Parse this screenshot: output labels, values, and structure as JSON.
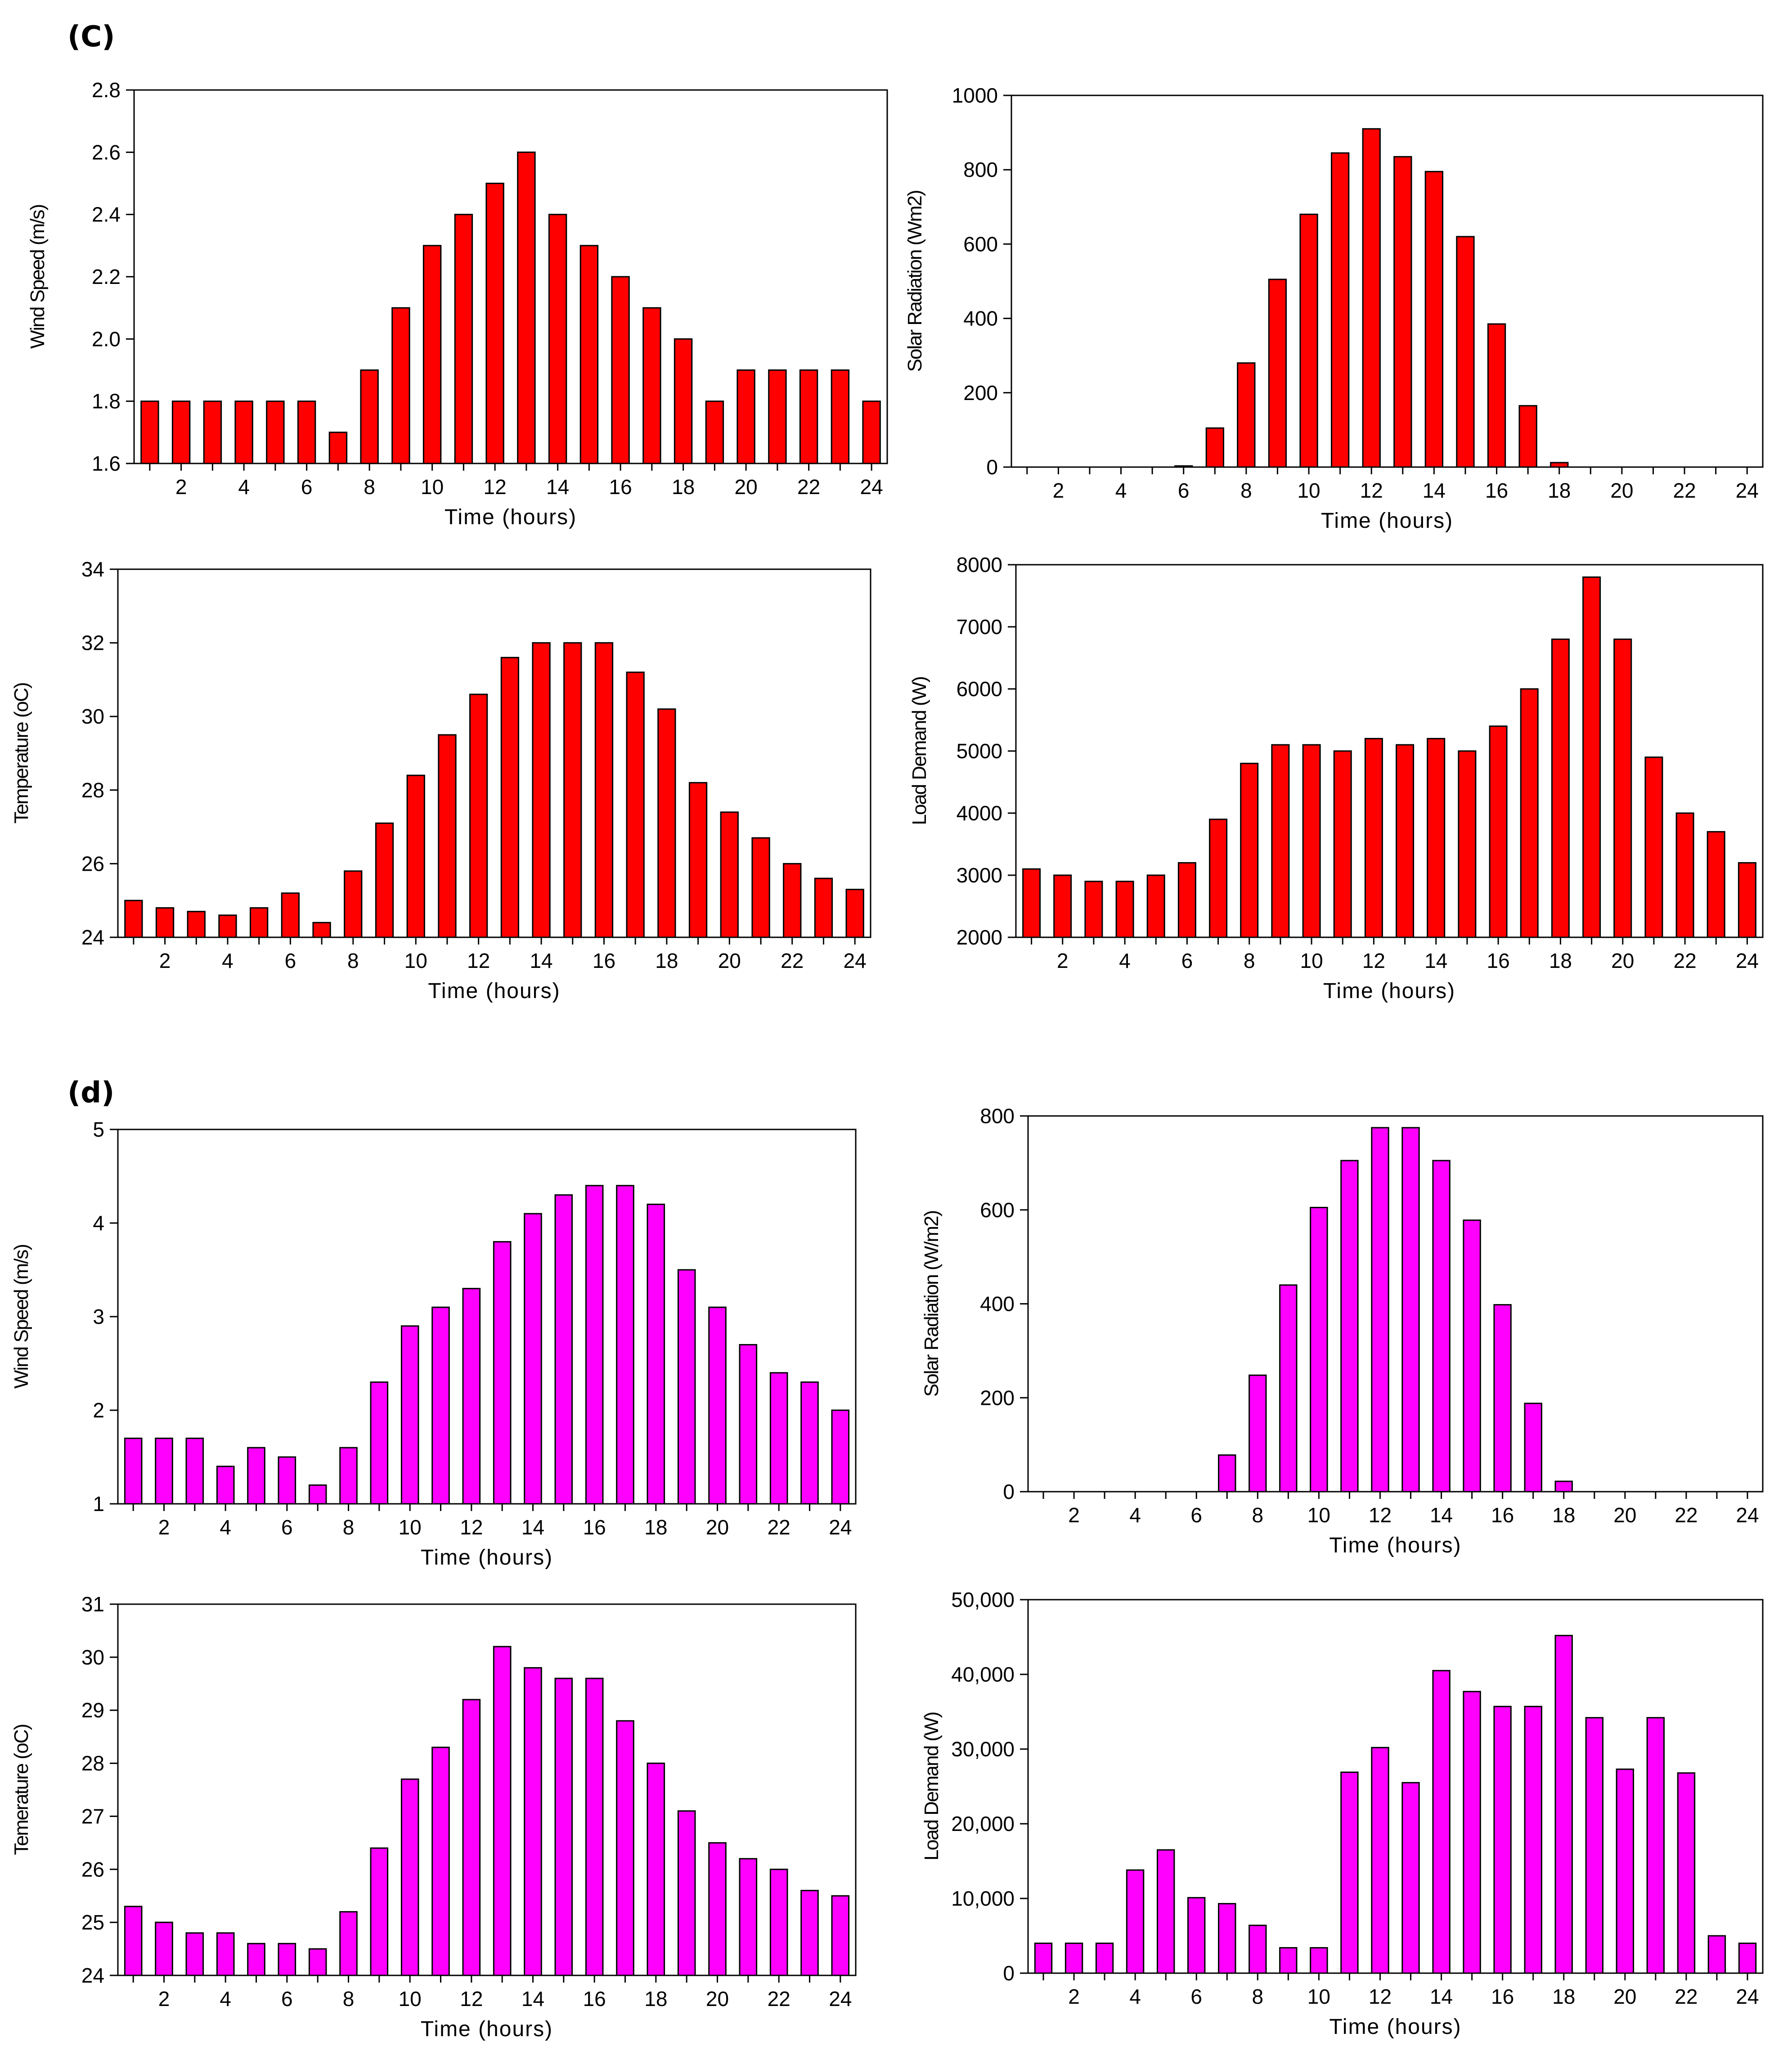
{
  "panels": [
    {
      "label": "(C)",
      "charts": [
        0,
        1,
        2,
        3
      ]
    },
    {
      "label": "(d)",
      "charts": [
        4,
        5,
        6,
        7
      ]
    }
  ],
  "colors": {
    "c_bar": "#ff0000",
    "d_bar": "#ff00ff",
    "axis": "#000000"
  },
  "chart_data": [
    {
      "type": "bar",
      "title": "",
      "xlabel": "Time (hours)",
      "ylabel": "Wind Speed (m/s)",
      "ylim": [
        1.6,
        2.8
      ],
      "yticks": [
        "1.6",
        "1.8",
        "2.0",
        "2.2",
        "2.4",
        "2.6",
        "2.8"
      ],
      "ytick_values": [
        1.6,
        1.8,
        2.0,
        2.2,
        2.4,
        2.6,
        2.8
      ],
      "xticks": [
        "2",
        "4",
        "6",
        "8",
        "10",
        "12",
        "14",
        "16",
        "18",
        "20",
        "22",
        "24"
      ],
      "x": [
        1,
        2,
        3,
        4,
        5,
        6,
        7,
        8,
        9,
        10,
        11,
        12,
        13,
        14,
        15,
        16,
        17,
        18,
        19,
        20,
        21,
        22,
        23,
        24
      ],
      "values": [
        1.8,
        1.8,
        1.8,
        1.8,
        1.8,
        1.8,
        1.7,
        1.9,
        2.1,
        2.3,
        2.4,
        2.5,
        2.6,
        2.4,
        2.3,
        2.2,
        2.1,
        2.0,
        1.8,
        1.9,
        1.9,
        1.9,
        1.9,
        1.8
      ]
    },
    {
      "type": "bar",
      "title": "",
      "xlabel": "Time (hours)",
      "ylabel": "Solar Radiation (Wm2)",
      "ylim": [
        0,
        1000
      ],
      "yticks": [
        "0",
        "200",
        "400",
        "600",
        "800",
        "1000"
      ],
      "ytick_values": [
        0,
        200,
        400,
        600,
        800,
        1000
      ],
      "xticks": [
        "2",
        "4",
        "6",
        "8",
        "10",
        "12",
        "14",
        "16",
        "18",
        "20",
        "22",
        "24"
      ],
      "x": [
        1,
        2,
        3,
        4,
        5,
        6,
        7,
        8,
        9,
        10,
        11,
        12,
        13,
        14,
        15,
        16,
        17,
        18,
        19,
        20,
        21,
        22,
        23,
        24
      ],
      "values": [
        0,
        0,
        0,
        0,
        0,
        3,
        105,
        280,
        505,
        680,
        845,
        910,
        835,
        795,
        620,
        385,
        165,
        12,
        0,
        0,
        0,
        0,
        0,
        0
      ]
    },
    {
      "type": "bar",
      "title": "",
      "xlabel": "Time (hours)",
      "ylabel": "Temperature (oC)",
      "ylim": [
        24,
        34
      ],
      "yticks": [
        "24",
        "26",
        "28",
        "30",
        "32",
        "34"
      ],
      "ytick_values": [
        24,
        26,
        28,
        30,
        32,
        34
      ],
      "xticks": [
        "2",
        "4",
        "6",
        "8",
        "10",
        "12",
        "14",
        "16",
        "18",
        "20",
        "22",
        "24"
      ],
      "x": [
        1,
        2,
        3,
        4,
        5,
        6,
        7,
        8,
        9,
        10,
        11,
        12,
        13,
        14,
        15,
        16,
        17,
        18,
        19,
        20,
        21,
        22,
        23,
        24
      ],
      "values": [
        25.0,
        24.8,
        24.7,
        24.6,
        24.8,
        25.2,
        24.4,
        25.8,
        27.1,
        28.4,
        29.5,
        30.6,
        31.6,
        32.0,
        32.0,
        32.0,
        31.2,
        30.2,
        28.2,
        27.4,
        26.7,
        26.0,
        25.6,
        25.3
      ]
    },
    {
      "type": "bar",
      "title": "",
      "xlabel": "Time (hours)",
      "ylabel": "Load Demand (W)",
      "ylim": [
        2000,
        8000
      ],
      "yticks": [
        "2000",
        "3000",
        "4000",
        "5000",
        "6000",
        "7000",
        "8000"
      ],
      "ytick_values": [
        2000,
        3000,
        4000,
        5000,
        6000,
        7000,
        8000
      ],
      "xticks": [
        "2",
        "4",
        "6",
        "8",
        "10",
        "12",
        "14",
        "16",
        "18",
        "20",
        "22",
        "24"
      ],
      "x": [
        1,
        2,
        3,
        4,
        5,
        6,
        7,
        8,
        9,
        10,
        11,
        12,
        13,
        14,
        15,
        16,
        17,
        18,
        19,
        20,
        21,
        22,
        23,
        24
      ],
      "values": [
        3100,
        3000,
        2900,
        2900,
        3000,
        3200,
        3900,
        4800,
        5100,
        5100,
        5000,
        5200,
        5100,
        5200,
        5000,
        5400,
        6000,
        6800,
        7800,
        6800,
        4900,
        4000,
        3700,
        3200
      ]
    },
    {
      "type": "bar",
      "title": "",
      "xlabel": "Time (hours)",
      "ylabel": "Wind Speed (m/s)",
      "ylim": [
        1,
        5
      ],
      "yticks": [
        "1",
        "2",
        "3",
        "4",
        "5"
      ],
      "ytick_values": [
        1,
        2,
        3,
        4,
        5
      ],
      "xticks": [
        "2",
        "4",
        "6",
        "8",
        "10",
        "12",
        "14",
        "16",
        "18",
        "20",
        "22",
        "24"
      ],
      "x": [
        1,
        2,
        3,
        4,
        5,
        6,
        7,
        8,
        9,
        10,
        11,
        12,
        13,
        14,
        15,
        16,
        17,
        18,
        19,
        20,
        21,
        22,
        23,
        24
      ],
      "values": [
        1.7,
        1.7,
        1.7,
        1.4,
        1.6,
        1.5,
        1.2,
        1.6,
        2.3,
        2.9,
        3.1,
        3.3,
        3.8,
        4.1,
        4.3,
        4.4,
        4.4,
        4.2,
        3.5,
        3.1,
        2.7,
        2.4,
        2.3,
        2.0
      ]
    },
    {
      "type": "bar",
      "title": "",
      "xlabel": "Time (hours)",
      "ylabel": "Solar Radiation (W/m2)",
      "ylim": [
        0,
        800
      ],
      "yticks": [
        "0",
        "200",
        "400",
        "600",
        "800"
      ],
      "ytick_values": [
        0,
        200,
        400,
        600,
        800
      ],
      "xticks": [
        "2",
        "4",
        "6",
        "8",
        "10",
        "12",
        "14",
        "16",
        "18",
        "20",
        "22",
        "24"
      ],
      "x": [
        1,
        2,
        3,
        4,
        5,
        6,
        7,
        8,
        9,
        10,
        11,
        12,
        13,
        14,
        15,
        16,
        17,
        18,
        19,
        20,
        21,
        22,
        23,
        24
      ],
      "values": [
        0,
        0,
        0,
        0,
        0,
        0,
        78,
        248,
        440,
        605,
        705,
        775,
        775,
        705,
        578,
        398,
        188,
        22,
        0,
        0,
        0,
        0,
        0,
        0
      ]
    },
    {
      "type": "bar",
      "title": "",
      "xlabel": "Time (hours)",
      "ylabel": "Temerature (oC)",
      "ylim": [
        24,
        31
      ],
      "yticks": [
        "24",
        "25",
        "26",
        "27",
        "28",
        "29",
        "30",
        "31"
      ],
      "ytick_values": [
        24,
        25,
        26,
        27,
        28,
        29,
        30,
        31
      ],
      "xticks": [
        "2",
        "4",
        "6",
        "8",
        "10",
        "12",
        "14",
        "16",
        "18",
        "20",
        "22",
        "24"
      ],
      "x": [
        1,
        2,
        3,
        4,
        5,
        6,
        7,
        8,
        9,
        10,
        11,
        12,
        13,
        14,
        15,
        16,
        17,
        18,
        19,
        20,
        21,
        22,
        23,
        24
      ],
      "values": [
        25.3,
        25.0,
        24.8,
        24.8,
        24.6,
        24.6,
        24.5,
        25.2,
        26.4,
        27.7,
        28.3,
        29.2,
        30.2,
        29.8,
        29.6,
        29.6,
        28.8,
        28.0,
        27.1,
        26.5,
        26.2,
        26.0,
        25.6,
        25.5
      ]
    },
    {
      "type": "bar",
      "title": "",
      "xlabel": "Time (hours)",
      "ylabel": "Load Demand (W)",
      "ylim": [
        0,
        50000
      ],
      "yticks": [
        "0",
        "10,000",
        "20,000",
        "30,000",
        "40,000",
        "50,000"
      ],
      "ytick_values": [
        0,
        10000,
        20000,
        30000,
        40000,
        50000
      ],
      "xticks": [
        "2",
        "4",
        "6",
        "8",
        "10",
        "12",
        "14",
        "16",
        "18",
        "20",
        "22",
        "24"
      ],
      "x": [
        1,
        2,
        3,
        4,
        5,
        6,
        7,
        8,
        9,
        10,
        11,
        12,
        13,
        14,
        15,
        16,
        17,
        18,
        19,
        20,
        21,
        22,
        23,
        24
      ],
      "values": [
        4000,
        4000,
        4000,
        13800,
        16500,
        10100,
        9300,
        6400,
        3400,
        3400,
        26900,
        30200,
        25500,
        40500,
        37700,
        35700,
        35700,
        45200,
        34200,
        27300,
        34200,
        26800,
        5000,
        4000
      ]
    }
  ]
}
